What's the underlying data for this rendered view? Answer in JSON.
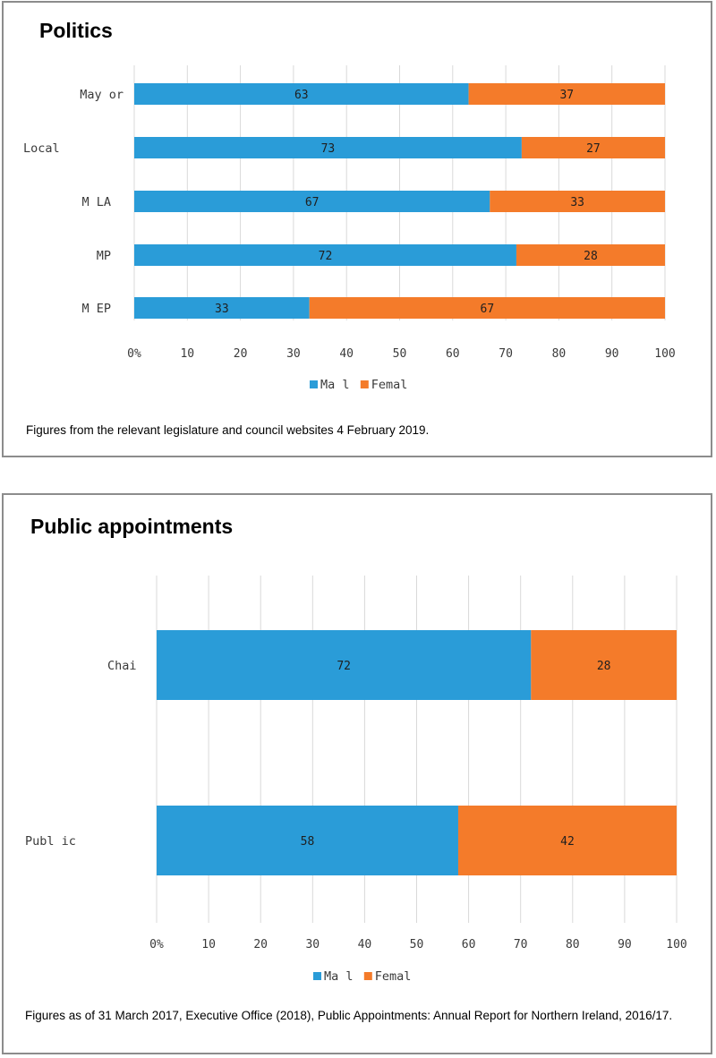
{
  "colors": {
    "male": "#2a9cd8",
    "female": "#f47b2a",
    "grid": "#d9d9d9"
  },
  "panels": [
    {
      "title": "Politics",
      "note": "Figures from the relevant legislature and council websites 4 February 2019."
    },
    {
      "title": "Public appointments",
      "note": "Figures as of 31 March 2017, Executive Office (2018), Public Appointments: Annual Report for Northern Ireland, 2016/17."
    }
  ],
  "chart_data": [
    {
      "type": "bar",
      "orientation": "horizontal",
      "stacked": true,
      "categories": [
        "May or",
        "Local",
        "M LA",
        "MP",
        "M EP"
      ],
      "series": [
        {
          "name": "Ma l",
          "values": [
            63,
            73,
            67,
            72,
            33
          ]
        },
        {
          "name": "Femal",
          "values": [
            37,
            27,
            33,
            28,
            67
          ]
        }
      ],
      "xlim": [
        0,
        100
      ],
      "xticks": [
        "0%",
        "10",
        "20",
        "30",
        "40",
        "50",
        "60",
        "70",
        "80",
        "90",
        "100"
      ],
      "grid": true,
      "legend": "bottom"
    },
    {
      "type": "bar",
      "orientation": "horizontal",
      "stacked": true,
      "categories": [
        "Chai",
        "Publ ic"
      ],
      "series": [
        {
          "name": "Ma l",
          "values": [
            72,
            58
          ]
        },
        {
          "name": "Femal",
          "values": [
            28,
            42
          ]
        }
      ],
      "xlim": [
        0,
        100
      ],
      "xticks": [
        "0%",
        "10",
        "20",
        "30",
        "40",
        "50",
        "60",
        "70",
        "80",
        "90",
        "100"
      ],
      "grid": true,
      "legend": "bottom"
    }
  ]
}
